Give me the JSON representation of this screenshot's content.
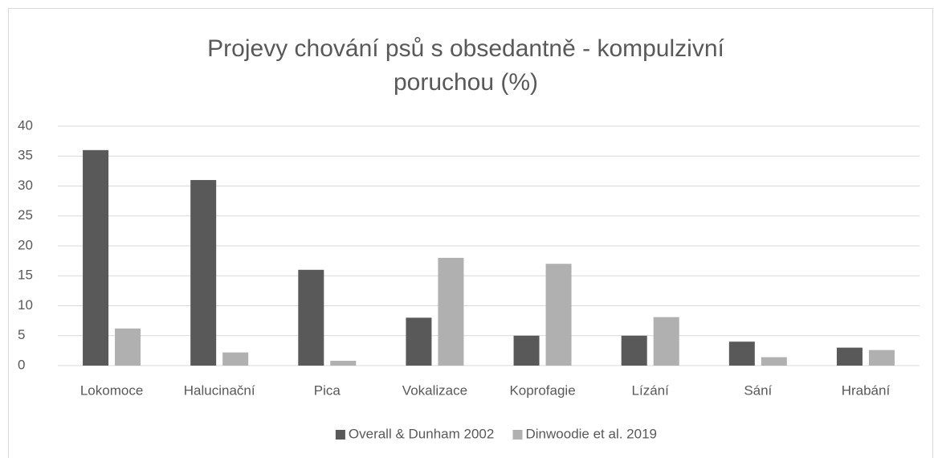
{
  "chart_data": {
    "type": "bar",
    "title": "Projevy chování psů s obsedantně - kompulzivní poruchou (%)",
    "categories": [
      "Lokomoce",
      "Halucinační",
      "Pica",
      "Vokalizace",
      "Koprofagie",
      "Lízání",
      "Sání",
      "Hrabání"
    ],
    "series": [
      {
        "name": "Overall & Dunham 2002",
        "color": "#595959",
        "values": [
          36,
          31,
          16,
          8,
          5,
          5,
          4,
          3
        ]
      },
      {
        "name": "Dinwoodie et al. 2019",
        "color": "#b0b0b0",
        "values": [
          6.2,
          2.2,
          0.8,
          18,
          17,
          8.1,
          1.4,
          2.6
        ]
      }
    ],
    "ylim": [
      0,
      40
    ],
    "yticks": [
      0,
      5,
      10,
      15,
      20,
      25,
      30,
      35,
      40
    ],
    "grid": true,
    "legend": "bottom"
  }
}
